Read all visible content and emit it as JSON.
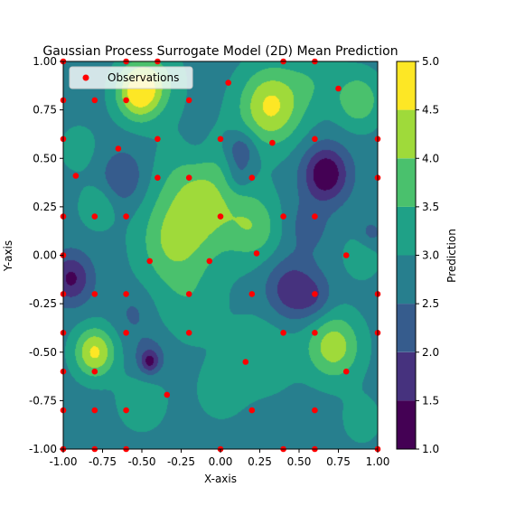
{
  "chart_data": {
    "type": "heatmap",
    "subtype": "filled-contour-with-scatter",
    "title": "Gaussian Process Surrogate Model (2D) Mean Prediction",
    "xlabel": "X-axis",
    "ylabel": "Y-axis",
    "xlim": [
      -1.0,
      1.0
    ],
    "ylim": [
      -1.0,
      1.0
    ],
    "x_ticks": [
      "-1.00",
      "-0.75",
      "-0.50",
      "-0.25",
      "0.00",
      "0.25",
      "0.50",
      "0.75",
      "1.00"
    ],
    "y_ticks": [
      "1.00",
      "0.75",
      "0.50",
      "0.25",
      "0.00",
      "-0.25",
      "-0.50",
      "-0.75",
      "-1.00"
    ],
    "grid": false,
    "legend": {
      "placement": "upper-left",
      "entries": [
        "Observations"
      ]
    },
    "colorbar": {
      "label": "Prediction",
      "ticks": [
        "5.0",
        "4.5",
        "4.0",
        "3.5",
        "3.0",
        "2.5",
        "2.0",
        "1.5",
        "1.0"
      ],
      "levels": [
        1.0,
        1.5,
        2.0,
        2.5,
        3.0,
        3.5,
        4.0,
        4.5,
        5.0
      ],
      "colors": [
        "#440154",
        "#46327e",
        "#365c8d",
        "#277f8e",
        "#1fa187",
        "#4ac16d",
        "#9fda3a",
        "#fde725"
      ]
    },
    "observations_color": "#ff0000",
    "observations": [
      [
        -1.0,
        1.0
      ],
      [
        -0.6,
        1.0
      ],
      [
        -0.4,
        1.0
      ],
      [
        0.4,
        1.0
      ],
      [
        0.6,
        1.0
      ],
      [
        0.75,
        0.86
      ],
      [
        0.05,
        0.89
      ],
      [
        -1.0,
        0.8
      ],
      [
        -0.8,
        0.8
      ],
      [
        -0.6,
        0.8
      ],
      [
        -0.2,
        0.8
      ],
      [
        -1.0,
        0.6
      ],
      [
        -0.4,
        0.6
      ],
      [
        -0.65,
        0.55
      ],
      [
        0.0,
        0.6
      ],
      [
        0.33,
        0.58
      ],
      [
        0.6,
        0.6
      ],
      [
        1.0,
        0.6
      ],
      [
        -0.92,
        0.41
      ],
      [
        -0.4,
        0.4
      ],
      [
        -0.2,
        0.4
      ],
      [
        0.2,
        0.4
      ],
      [
        1.0,
        0.4
      ],
      [
        -1.0,
        0.2
      ],
      [
        -0.8,
        0.2
      ],
      [
        -0.6,
        0.2
      ],
      [
        0.0,
        0.2
      ],
      [
        0.4,
        0.2
      ],
      [
        0.6,
        0.2
      ],
      [
        -1.0,
        0.0
      ],
      [
        -0.45,
        -0.03
      ],
      [
        -0.07,
        -0.03
      ],
      [
        0.23,
        0.01
      ],
      [
        0.8,
        0.0
      ],
      [
        -1.0,
        -0.2
      ],
      [
        -0.8,
        -0.2
      ],
      [
        -0.6,
        -0.2
      ],
      [
        -0.2,
        -0.2
      ],
      [
        0.2,
        -0.2
      ],
      [
        0.6,
        -0.2
      ],
      [
        1.0,
        -0.2
      ],
      [
        -1.0,
        -0.4
      ],
      [
        -0.6,
        -0.4
      ],
      [
        -0.2,
        -0.4
      ],
      [
        0.4,
        -0.4
      ],
      [
        0.6,
        -0.4
      ],
      [
        1.0,
        -0.4
      ],
      [
        -1.0,
        -0.6
      ],
      [
        -0.8,
        -0.6
      ],
      [
        0.16,
        -0.55
      ],
      [
        0.8,
        -0.6
      ],
      [
        -1.0,
        -0.8
      ],
      [
        -0.8,
        -0.8
      ],
      [
        -0.6,
        -0.8
      ],
      [
        -0.34,
        -0.72
      ],
      [
        0.2,
        -0.8
      ],
      [
        0.6,
        -0.8
      ],
      [
        -1.0,
        -1.0
      ],
      [
        -0.8,
        -1.0
      ],
      [
        -0.6,
        -1.0
      ],
      [
        0.0,
        -1.0
      ],
      [
        0.4,
        -1.0
      ],
      [
        0.6,
        -1.0
      ],
      [
        1.0,
        -1.0
      ]
    ],
    "surface_bumps": [
      [
        -0.52,
        0.84,
        2.0,
        0.1
      ],
      [
        0.32,
        0.77,
        1.8,
        0.14
      ],
      [
        0.88,
        0.8,
        1.1,
        0.1
      ],
      [
        -0.4,
        0.9,
        0.6,
        0.12
      ],
      [
        0.6,
        0.9,
        0.5,
        0.12
      ],
      [
        -0.12,
        0.28,
        1.4,
        0.2
      ],
      [
        0.22,
        0.14,
        0.9,
        0.12
      ],
      [
        -0.32,
        0.05,
        0.9,
        0.15
      ],
      [
        -0.78,
        0.25,
        0.7,
        0.08
      ],
      [
        -0.9,
        0.55,
        0.4,
        0.1
      ],
      [
        -0.8,
        -0.5,
        1.8,
        0.09
      ],
      [
        0.72,
        -0.47,
        1.5,
        0.12
      ],
      [
        0.28,
        -0.5,
        0.6,
        0.15
      ],
      [
        0.0,
        -0.7,
        0.4,
        0.12
      ],
      [
        -0.5,
        -0.75,
        0.5,
        0.12
      ],
      [
        0.9,
        -0.85,
        0.4,
        0.1
      ],
      [
        0.9,
        0.0,
        0.7,
        0.08
      ],
      [
        -0.2,
        -0.25,
        0.5,
        0.15
      ],
      [
        0.67,
        0.42,
        -1.8,
        0.1
      ],
      [
        0.13,
        0.54,
        -1.0,
        0.07
      ],
      [
        0.12,
        0.4,
        -0.6,
        0.06
      ],
      [
        -0.95,
        -0.12,
        -1.4,
        0.09
      ],
      [
        0.45,
        -0.18,
        -1.2,
        0.11
      ],
      [
        0.6,
        -0.22,
        -0.6,
        0.08
      ],
      [
        -0.45,
        -0.55,
        -1.1,
        0.04
      ],
      [
        -0.45,
        -0.52,
        -0.6,
        0.08
      ],
      [
        -0.62,
        0.4,
        -0.8,
        0.1
      ],
      [
        0.55,
        0.15,
        -0.5,
        0.1
      ],
      [
        -0.15,
        0.55,
        -0.3,
        0.08
      ],
      [
        0.95,
        0.1,
        -0.6,
        0.06
      ],
      [
        -0.55,
        -0.3,
        -0.4,
        0.08
      ]
    ],
    "surface_base": 2.8
  }
}
